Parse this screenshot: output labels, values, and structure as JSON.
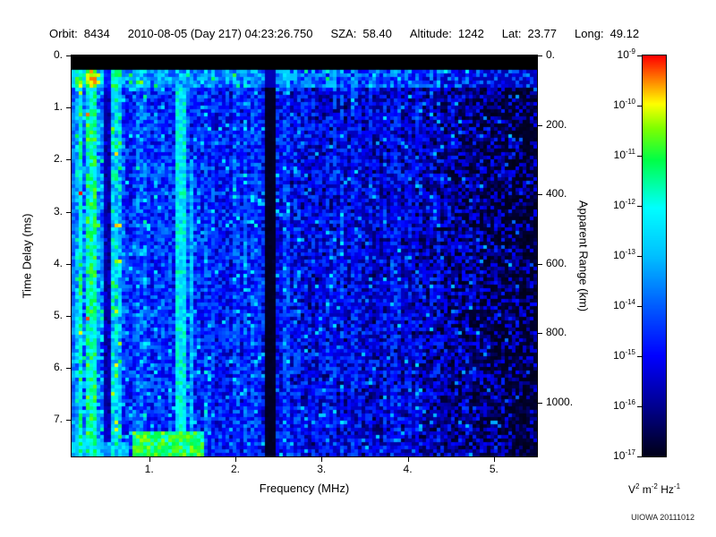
{
  "header": {
    "orbit_label": "Orbit:",
    "orbit_value": "8434",
    "datetime": "2010-08-05 (Day 217) 04:23:26.750",
    "sza_label": "SZA:",
    "sza_value": "58.40",
    "altitude_label": "Altitude:",
    "altitude_value": "1242",
    "lat_label": "Lat:",
    "lat_value": "23.77",
    "long_label": "Long:",
    "long_value": "49.12"
  },
  "chart_data": {
    "type": "heatmap",
    "xlabel": "Frequency (MHz)",
    "ylabel": "Time Delay (ms)",
    "ylabel_right": "Apparent Range (km)",
    "x_range_mhz": [
      0.1,
      5.5
    ],
    "y_range_ms": [
      0.0,
      7.7
    ],
    "y_right_range_km": [
      0,
      1155
    ],
    "range_km_per_ms": 150,
    "x_tick_values": [
      1,
      2,
      3,
      4,
      5
    ],
    "x_tick_labels": [
      "1.",
      "2.",
      "3.",
      "4.",
      "5."
    ],
    "y_tick_values": [
      0,
      1,
      2,
      3,
      4,
      5,
      6,
      7
    ],
    "y_tick_labels": [
      "0.",
      "1.",
      "2.",
      "3.",
      "4.",
      "5.",
      "6.",
      "7."
    ],
    "y_right_tick_values": [
      0,
      200,
      400,
      600,
      800,
      1000
    ],
    "y_right_tick_labels": [
      "0.",
      "200.",
      "400.",
      "600.",
      "800.",
      "1000."
    ],
    "colorbar": {
      "scale": "log",
      "max_value": "1e-9",
      "min_value": "1e-17",
      "tick_base": "10",
      "tick_exponents": [
        "-9",
        "-10",
        "-11",
        "-12",
        "-13",
        "-14",
        "-15",
        "-16",
        "-17"
      ],
      "units_parts": [
        {
          "base": "V",
          "exp": "2"
        },
        {
          "base": "m",
          "exp": "-2"
        },
        {
          "base": "Hz",
          "exp": "-1"
        }
      ],
      "colormap": [
        [
          0.0,
          "#000018"
        ],
        [
          0.12,
          "#00008c"
        ],
        [
          0.25,
          "#0000ff"
        ],
        [
          0.38,
          "#0060ff"
        ],
        [
          0.5,
          "#00c0ff"
        ],
        [
          0.62,
          "#00ffff"
        ],
        [
          0.74,
          "#00ff46"
        ],
        [
          0.82,
          "#80ff00"
        ],
        [
          0.88,
          "#ffff00"
        ],
        [
          0.94,
          "#ff8000"
        ],
        [
          1.0,
          "#ff0000"
        ]
      ]
    },
    "features": [
      "solid black band from 0.0 to ~0.25 ms across all frequencies",
      "bright cyan horizontal band near 0.3-0.5 ms",
      "strong cyan/green vertical striping below ~0.65 MHz",
      "bright vertical emission line near 0.3 MHz",
      "dark vertical band near 0.48 MHz",
      "thin cyan vertical lines near 1.35 and 1.45 MHz",
      "dark vertical gap (no signal) near 2.35 MHz",
      "diffuse blue speckle noise fading above 3 MHz",
      "clustered black dropouts above ~4.3 MHz",
      "bright green echo patch near 0.8-1.6 MHz at 7.3-7.7 ms"
    ],
    "noise_seed": 20111012
  },
  "watermark": "UIOWA 20111012"
}
